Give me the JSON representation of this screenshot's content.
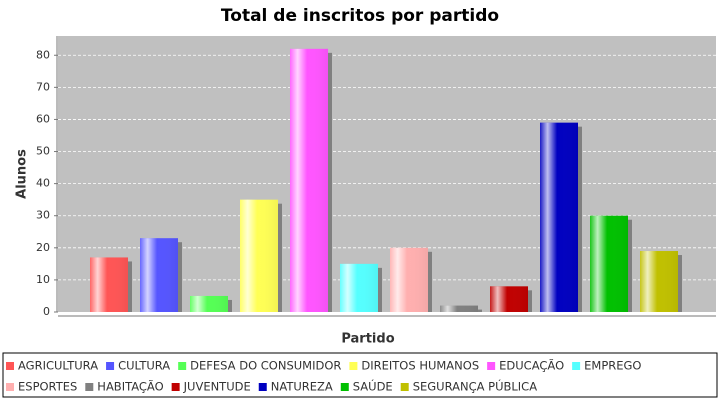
{
  "chart_data": {
    "type": "bar",
    "title": "Total de inscritos por partido",
    "x_label": "Partido",
    "y_label": "Alunos",
    "categories": [
      null
    ],
    "series": [
      {
        "name": "AGRICULTURA",
        "color": "#ff5555",
        "values": [
          17
        ]
      },
      {
        "name": "CULTURA",
        "color": "#5555ff",
        "values": [
          23
        ]
      },
      {
        "name": "DEFESA DO CONSUMIDOR",
        "color": "#55ff55",
        "values": [
          5
        ]
      },
      {
        "name": "DIREITOS HUMANOS",
        "color": "#ffff55",
        "values": [
          35
        ]
      },
      {
        "name": "EDUCAÇÃO",
        "color": "#ff55ff",
        "values": [
          82
        ]
      },
      {
        "name": "EMPREGO",
        "color": "#55ffff",
        "values": [
          15
        ]
      },
      {
        "name": "ESPORTES",
        "color": "#ffafaf",
        "values": [
          20
        ]
      },
      {
        "name": "HABITAÇÃO",
        "color": "#808080",
        "values": [
          2
        ]
      },
      {
        "name": "JUVENTUDE",
        "color": "#c00000",
        "values": [
          8
        ]
      },
      {
        "name": "NATUREZA",
        "color": "#0000c0",
        "values": [
          59
        ]
      },
      {
        "name": "SAÚDE",
        "color": "#00c000",
        "values": [
          30
        ]
      },
      {
        "name": "SEGURANÇA PÚBLICA",
        "color": "#c0c000",
        "values": [
          19
        ]
      }
    ],
    "ylim": [
      0,
      86
    ],
    "yticks": [
      0,
      10,
      20,
      30,
      40,
      50,
      60,
      70,
      80
    ],
    "grid": true,
    "legend": "bottom"
  }
}
